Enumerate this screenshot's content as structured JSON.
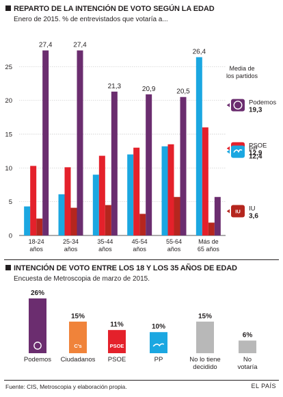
{
  "colors": {
    "podemos": "#6b2d6f",
    "psoe": "#e4212b",
    "pp": "#1ba7e1",
    "iu": "#b5261e",
    "ciudadanos": "#f0833a",
    "undecided": "#b8b8b8",
    "novote": "#b8b8b8",
    "grid": "#c8c8c8",
    "text": "#231f20"
  },
  "chart_data": [
    {
      "type": "bar",
      "title": "REPARTO DE LA INTENCIÓN DE VOTO SEGÚN LA EDAD",
      "subtitle": "Enero de 2015. % de entrevistados que votaría a...",
      "categories": [
        [
          "18-24",
          "años"
        ],
        [
          "25-34",
          "años"
        ],
        [
          "35-44",
          "años"
        ],
        [
          "45-54",
          "años"
        ],
        [
          "55-64",
          "años"
        ],
        [
          "Más de",
          "65 años"
        ]
      ],
      "yticks": [
        0,
        5,
        10,
        15,
        20,
        25
      ],
      "ylim": [
        0,
        30
      ],
      "grid": true,
      "series": [
        {
          "name": "PP",
          "color_key": "pp",
          "values": [
            4.3,
            6.1,
            9.0,
            12.0,
            13.2,
            26.4
          ]
        },
        {
          "name": "PSOE",
          "color_key": "psoe",
          "values": [
            10.3,
            10.1,
            11.8,
            13.0,
            13.5,
            16.0
          ]
        },
        {
          "name": "IU",
          "color_key": "iu",
          "values": [
            2.5,
            4.1,
            4.5,
            3.2,
            5.7,
            1.9
          ]
        },
        {
          "name": "Podemos",
          "color_key": "podemos",
          "values": [
            27.4,
            27.4,
            21.3,
            20.9,
            20.5,
            5.7
          ]
        }
      ],
      "value_labels": [
        {
          "series": "Podemos",
          "index": 0,
          "text": "27,4"
        },
        {
          "series": "Podemos",
          "index": 1,
          "text": "27,4"
        },
        {
          "series": "Podemos",
          "index": 2,
          "text": "21,3"
        },
        {
          "series": "Podemos",
          "index": 3,
          "text": "20,9"
        },
        {
          "series": "Podemos",
          "index": 4,
          "text": "20,5"
        },
        {
          "series": "PP",
          "index": 5,
          "text": "26,4"
        }
      ],
      "legend_title": [
        "Media de",
        "los partidos"
      ],
      "legend": [
        {
          "name": "Podemos",
          "value": "19,3",
          "value_num": 19.3,
          "color_key": "podemos",
          "logo": "podemos-circle"
        },
        {
          "name": "PSOE",
          "value": "12,9",
          "value_num": 12.9,
          "color_key": "psoe",
          "logo": "psoe-rose",
          "logo_text": "PSOE"
        },
        {
          "name": "PP",
          "value": "12,4",
          "value_num": 12.4,
          "color_key": "pp",
          "logo": "pp-gull"
        },
        {
          "name": "IU",
          "value": "3,6",
          "value_num": 3.6,
          "color_key": "iu",
          "logo": "iu-logo",
          "logo_text": "IU"
        }
      ]
    },
    {
      "type": "bar",
      "title": "INTENCIÓN DE VOTO ENTRE LOS 18 Y LOS 35 AÑOS DE EDAD",
      "subtitle": "Encuesta de Metroscopia de marzo de 2015.",
      "categories": [
        [
          "Podemos"
        ],
        [
          "Ciudadanos"
        ],
        [
          "PSOE"
        ],
        [
          "PP"
        ],
        [
          "No lo tiene",
          "decidido"
        ],
        [
          "No",
          "votaría"
        ]
      ],
      "values": [
        26,
        15,
        11,
        10,
        15,
        6
      ],
      "value_labels": [
        "26%",
        "15%",
        "11%",
        "10%",
        "15%",
        "6%"
      ],
      "color_keys": [
        "podemos",
        "ciudadanos",
        "psoe",
        "pp",
        "undecided",
        "novote"
      ],
      "logos": [
        "podemos-circle",
        "cs-logo",
        "psoe-rose",
        "pp-gull",
        "",
        ""
      ],
      "logo_texts": [
        "",
        "C's",
        "PSOE",
        "",
        "",
        ""
      ]
    }
  ],
  "footer": {
    "source": "Fuente: CIS, Metroscopia y elaboración propia.",
    "brand": "EL PAÍS"
  }
}
